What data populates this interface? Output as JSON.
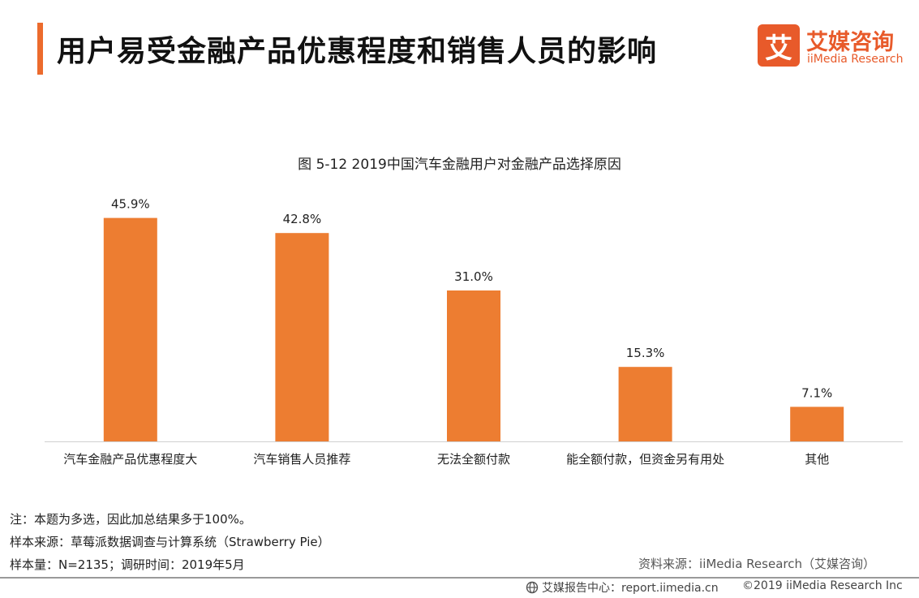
{
  "header": {
    "title": "用户易受金融产品优惠程度和销售人员的影响",
    "logo_mark": "艾",
    "logo_cn": "艾媒咨询",
    "logo_en": "iiMedia Research"
  },
  "chart_data": {
    "type": "bar",
    "title": "图 5-12  2019中国汽车金融用户对金融产品选择原因",
    "categories": [
      "汽车金融产品优惠程度大",
      "汽车销售人员推荐",
      "无法全额付款",
      "能全额付款，但资金另有用处",
      "其他"
    ],
    "values": [
      45.9,
      42.8,
      31.0,
      15.3,
      7.1
    ],
    "data_labels": [
      "45.9%",
      "42.8%",
      "31.0%",
      "15.3%",
      "7.1%"
    ],
    "xlabel": "",
    "ylabel": "",
    "ylim": [
      0,
      50
    ],
    "grid": false,
    "bar_color": "#ed7d31"
  },
  "notes": {
    "note": "注：本题为多选，因此加总结果多于100%。",
    "sample_source": "样本来源：草莓派数据调查与计算系统（Strawberry Pie）",
    "sample_size": "样本量：N=2135；调研时间：2019年5月"
  },
  "source": "资料来源：iiMedia Research（艾媒咨询）",
  "footer": {
    "report_center": "艾媒报告中心：report.iimedia.cn",
    "copyright": "©2019  iiMedia Research  Inc"
  }
}
